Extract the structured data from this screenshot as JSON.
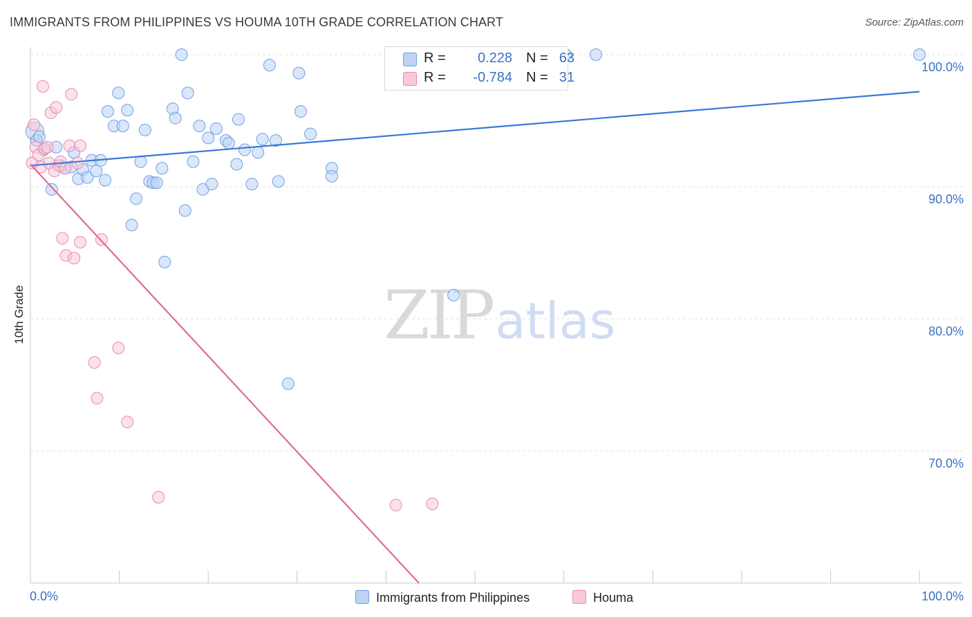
{
  "title": "IMMIGRANTS FROM PHILIPPINES VS HOUMA 10TH GRADE CORRELATION CHART",
  "source": "Source: ZipAtlas.com",
  "watermark": {
    "zip": "ZIP",
    "atlas": "atlas"
  },
  "legend": {
    "rows": [
      {
        "r_label": "R =",
        "r_value": "0.228",
        "n_label": "N =",
        "n_value": "63",
        "fill": "#bcd3f5",
        "stroke": "#6e9fe0"
      },
      {
        "r_label": "R =",
        "r_value": "-0.784",
        "n_label": "N =",
        "n_value": "31",
        "fill": "#f8c9d8",
        "stroke": "#e98aaa"
      }
    ]
  },
  "bottom_legend": {
    "items": [
      {
        "label": "Immigrants from Philippines",
        "fill": "#bcd3f5",
        "stroke": "#6e9fe0"
      },
      {
        "label": "Houma",
        "fill": "#f8c9d8",
        "stroke": "#e98aaa"
      }
    ]
  },
  "chart_data": {
    "type": "scatter",
    "title": "IMMIGRANTS FROM PHILIPPINES VS HOUMA 10TH GRADE CORRELATION CHART",
    "ylabel": "10th Grade",
    "xlabel": "",
    "xlim": [
      0,
      100
    ],
    "ylim": [
      60,
      100
    ],
    "x_tick_labels": [
      "0.0%",
      "100.0%"
    ],
    "y_ticks": [
      {
        "value": 100,
        "label": "100.0%"
      },
      {
        "value": 90,
        "label": "90.0%"
      },
      {
        "value": 80,
        "label": "80.0%"
      },
      {
        "value": 70,
        "label": "70.0%"
      }
    ],
    "grid": true,
    "legend_position": "top-center",
    "series": [
      {
        "name": "Immigrants from Philippines",
        "color": "#3b78d8",
        "fill": "#bcd3f5",
        "stroke": "#6e9fe0",
        "r": 0.228,
        "n": 63,
        "trend": {
          "x": [
            0,
            100
          ],
          "y": [
            91.6,
            97.2
          ]
        },
        "points": [
          {
            "x": 0.5,
            "y": 94.2,
            "big": true
          },
          {
            "x": 0.7,
            "y": 93.5
          },
          {
            "x": 1.5,
            "y": 92.8
          },
          {
            "x": 2.4,
            "y": 89.8
          },
          {
            "x": 2.9,
            "y": 93.0
          },
          {
            "x": 3.4,
            "y": 91.6
          },
          {
            "x": 3.9,
            "y": 91.4
          },
          {
            "x": 4.6,
            "y": 91.5
          },
          {
            "x": 4.9,
            "y": 92.6
          },
          {
            "x": 5.4,
            "y": 90.6
          },
          {
            "x": 5.9,
            "y": 91.3
          },
          {
            "x": 6.4,
            "y": 90.7
          },
          {
            "x": 6.9,
            "y": 92.0
          },
          {
            "x": 7.4,
            "y": 91.2
          },
          {
            "x": 7.9,
            "y": 92.0
          },
          {
            "x": 8.4,
            "y": 90.5
          },
          {
            "x": 8.7,
            "y": 95.7
          },
          {
            "x": 9.4,
            "y": 94.6
          },
          {
            "x": 9.9,
            "y": 97.1
          },
          {
            "x": 10.4,
            "y": 94.6
          },
          {
            "x": 10.9,
            "y": 95.8
          },
          {
            "x": 11.4,
            "y": 87.1
          },
          {
            "x": 11.9,
            "y": 89.1
          },
          {
            "x": 12.4,
            "y": 91.9
          },
          {
            "x": 12.9,
            "y": 94.3
          },
          {
            "x": 13.4,
            "y": 90.4
          },
          {
            "x": 13.8,
            "y": 90.3
          },
          {
            "x": 14.2,
            "y": 90.3
          },
          {
            "x": 14.8,
            "y": 91.4
          },
          {
            "x": 15.1,
            "y": 84.3
          },
          {
            "x": 16.0,
            "y": 95.9
          },
          {
            "x": 16.3,
            "y": 95.2
          },
          {
            "x": 17.0,
            "y": 100.0
          },
          {
            "x": 17.4,
            "y": 88.2
          },
          {
            "x": 17.7,
            "y": 97.1
          },
          {
            "x": 18.3,
            "y": 91.9
          },
          {
            "x": 19.0,
            "y": 94.6
          },
          {
            "x": 19.4,
            "y": 89.8
          },
          {
            "x": 20.0,
            "y": 93.7
          },
          {
            "x": 20.4,
            "y": 90.2
          },
          {
            "x": 20.9,
            "y": 94.4
          },
          {
            "x": 22.0,
            "y": 93.5
          },
          {
            "x": 22.3,
            "y": 93.3
          },
          {
            "x": 23.2,
            "y": 91.7
          },
          {
            "x": 23.4,
            "y": 95.1
          },
          {
            "x": 24.1,
            "y": 92.8
          },
          {
            "x": 24.9,
            "y": 90.2
          },
          {
            "x": 25.6,
            "y": 92.6
          },
          {
            "x": 26.1,
            "y": 93.6
          },
          {
            "x": 26.9,
            "y": 99.2
          },
          {
            "x": 27.6,
            "y": 93.5
          },
          {
            "x": 27.9,
            "y": 90.4
          },
          {
            "x": 30.2,
            "y": 98.6
          },
          {
            "x": 30.4,
            "y": 95.7
          },
          {
            "x": 31.5,
            "y": 94.0
          },
          {
            "x": 29.0,
            "y": 75.1
          },
          {
            "x": 33.9,
            "y": 91.4
          },
          {
            "x": 33.9,
            "y": 90.8
          },
          {
            "x": 47.6,
            "y": 81.8
          },
          {
            "x": 60.2,
            "y": 100.0
          },
          {
            "x": 63.6,
            "y": 100.0
          },
          {
            "x": 100.0,
            "y": 100.0
          },
          {
            "x": 1.0,
            "y": 93.8
          }
        ]
      },
      {
        "name": "Houma",
        "color": "#e0699a",
        "fill": "#f8c9d8",
        "stroke": "#e98aaa",
        "r": -0.784,
        "n": 31,
        "trend": {
          "x": [
            0,
            43.7
          ],
          "y": [
            91.7,
            60.0
          ]
        },
        "points": [
          {
            "x": 0.2,
            "y": 91.8
          },
          {
            "x": 0.4,
            "y": 94.7
          },
          {
            "x": 0.6,
            "y": 93.0
          },
          {
            "x": 0.9,
            "y": 92.4
          },
          {
            "x": 1.2,
            "y": 91.5
          },
          {
            "x": 1.4,
            "y": 97.6
          },
          {
            "x": 1.6,
            "y": 92.9
          },
          {
            "x": 1.9,
            "y": 93.0
          },
          {
            "x": 2.1,
            "y": 91.8
          },
          {
            "x": 2.3,
            "y": 95.6
          },
          {
            "x": 2.7,
            "y": 91.2
          },
          {
            "x": 2.9,
            "y": 96.0
          },
          {
            "x": 3.2,
            "y": 91.6
          },
          {
            "x": 3.4,
            "y": 91.9
          },
          {
            "x": 3.6,
            "y": 86.1
          },
          {
            "x": 3.9,
            "y": 91.4
          },
          {
            "x": 4.0,
            "y": 84.8
          },
          {
            "x": 4.4,
            "y": 93.1
          },
          {
            "x": 4.6,
            "y": 97.0
          },
          {
            "x": 4.9,
            "y": 84.6
          },
          {
            "x": 5.3,
            "y": 91.8
          },
          {
            "x": 5.6,
            "y": 93.1
          },
          {
            "x": 5.6,
            "y": 85.8
          },
          {
            "x": 7.2,
            "y": 76.7
          },
          {
            "x": 7.5,
            "y": 74.0
          },
          {
            "x": 8.0,
            "y": 86.0
          },
          {
            "x": 9.9,
            "y": 77.8
          },
          {
            "x": 10.9,
            "y": 72.2
          },
          {
            "x": 14.4,
            "y": 66.5
          },
          {
            "x": 41.1,
            "y": 65.9
          },
          {
            "x": 45.2,
            "y": 66.0
          }
        ]
      }
    ]
  }
}
